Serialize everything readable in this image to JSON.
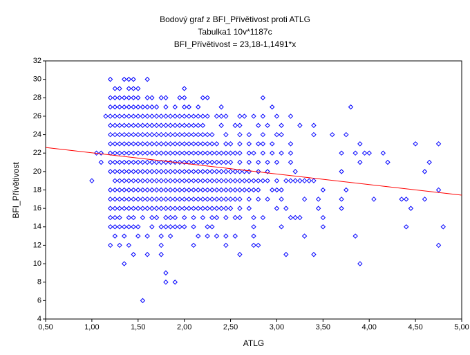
{
  "chart_data": {
    "type": "scatter",
    "title": "Bodový graf z BFI_Přívětivost proti ATLG",
    "subtitle": "Tabulka1 10v*1187c",
    "equation": "BFI_Přívětivost = 23,18-1,1491*x",
    "x_label": "ATLG",
    "y_label": "BFI_Přívětivost",
    "color": "#0000ff",
    "line_color": "#ff0000",
    "regression": {
      "intercept": 23.18,
      "slope": -1.1491
    },
    "xlim": [
      0.5,
      5.0
    ],
    "xticks": [
      {
        "value": 0.5,
        "label": "0,50"
      },
      {
        "value": 1.0,
        "label": "1,00"
      },
      {
        "value": 1.5,
        "label": "1,50"
      },
      {
        "value": 2.0,
        "label": "2,00"
      },
      {
        "value": 2.5,
        "label": "2,50"
      },
      {
        "value": 3.0,
        "label": "3,00"
      },
      {
        "value": 3.5,
        "label": "3,50"
      },
      {
        "value": 4.0,
        "label": "4,00"
      },
      {
        "value": 4.5,
        "label": "4,50"
      },
      {
        "value": 5.0,
        "label": "5,00"
      }
    ],
    "ylim": [
      4,
      32
    ],
    "yticks": [
      4,
      6,
      8,
      10,
      12,
      14,
      16,
      18,
      20,
      22,
      24,
      26,
      28,
      30,
      32
    ],
    "x": [
      1.2,
      1.35,
      1.4,
      1.45,
      1.6,
      1.25,
      1.3,
      1.4,
      1.45,
      1.5,
      2,
      1.2,
      1.25,
      1.3,
      1.35,
      1.4,
      1.45,
      1.5,
      1.6,
      1.65,
      1.75,
      1.8,
      1.95,
      2,
      2.2,
      2.25,
      2.85,
      1.2,
      1.25,
      1.3,
      1.35,
      1.4,
      1.45,
      1.5,
      1.55,
      1.6,
      1.65,
      1.7,
      1.8,
      1.9,
      2,
      2.05,
      2.15,
      2.4,
      2.95,
      3.8,
      1.15,
      1.2,
      1.25,
      1.3,
      1.35,
      1.4,
      1.45,
      1.5,
      1.55,
      1.6,
      1.65,
      1.7,
      1.75,
      1.8,
      1.85,
      1.9,
      1.95,
      2,
      2.05,
      2.1,
      2.15,
      2.2,
      2.25,
      2.35,
      2.4,
      2.45,
      2.6,
      2.65,
      2.75,
      2.85,
      3,
      3.15,
      1.2,
      1.25,
      1.3,
      1.35,
      1.4,
      1.45,
      1.5,
      1.55,
      1.6,
      1.65,
      1.7,
      1.75,
      1.8,
      1.85,
      1.9,
      1.95,
      2,
      2.05,
      2.1,
      2.15,
      2.2,
      2.4,
      2.55,
      2.6,
      2.8,
      2.9,
      3.05,
      3.25,
      3.4,
      1.2,
      1.25,
      1.3,
      1.35,
      1.4,
      1.45,
      1.5,
      1.55,
      1.6,
      1.65,
      1.7,
      1.75,
      1.8,
      1.85,
      1.9,
      1.95,
      2,
      2.05,
      2.1,
      2.15,
      2.2,
      2.25,
      2.3,
      2.45,
      2.6,
      2.7,
      2.85,
      3,
      3.05,
      3.4,
      3.6,
      3.75,
      1.2,
      1.25,
      1.3,
      1.35,
      1.4,
      1.45,
      1.5,
      1.55,
      1.6,
      1.65,
      1.7,
      1.75,
      1.8,
      1.85,
      1.9,
      1.95,
      2,
      2.05,
      2.1,
      2.15,
      2.2,
      2.25,
      2.3,
      2.35,
      2.45,
      2.5,
      2.6,
      2.7,
      2.8,
      2.85,
      2.95,
      3.15,
      3.9,
      4.5,
      4.75,
      1.05,
      1.1,
      1.2,
      1.25,
      1.3,
      1.35,
      1.4,
      1.45,
      1.5,
      1.55,
      1.6,
      1.65,
      1.7,
      1.75,
      1.8,
      1.85,
      1.9,
      1.95,
      2,
      2.05,
      2.1,
      2.15,
      2.2,
      2.25,
      2.3,
      2.35,
      2.4,
      2.45,
      2.5,
      2.55,
      2.6,
      2.7,
      2.75,
      2.85,
      2.95,
      3.05,
      3.15,
      3.7,
      3.85,
      3.95,
      4,
      4.15,
      1.1,
      1.2,
      1.25,
      1.3,
      1.35,
      1.4,
      1.45,
      1.5,
      1.55,
      1.6,
      1.65,
      1.7,
      1.75,
      1.8,
      1.85,
      1.9,
      1.95,
      2,
      2.05,
      2.1,
      2.15,
      2.2,
      2.25,
      2.3,
      2.35,
      2.4,
      2.45,
      2.5,
      2.6,
      2.7,
      2.8,
      2.9,
      3,
      3.15,
      3.9,
      4.2,
      4.65,
      1.2,
      1.25,
      1.3,
      1.35,
      1.4,
      1.45,
      1.5,
      1.55,
      1.6,
      1.65,
      1.7,
      1.75,
      1.8,
      1.85,
      1.9,
      1.95,
      2,
      2.05,
      2.1,
      2.15,
      2.2,
      2.25,
      2.3,
      2.35,
      2.4,
      2.45,
      2.5,
      2.55,
      2.6,
      2.65,
      2.7,
      2.8,
      2.9,
      3.2,
      3.7,
      4.6,
      1,
      1.25,
      1.3,
      1.35,
      1.4,
      1.45,
      1.5,
      1.55,
      1.6,
      1.65,
      1.7,
      1.75,
      1.8,
      1.85,
      1.9,
      1.95,
      2,
      2.05,
      2.1,
      2.15,
      2.2,
      2.25,
      2.3,
      2.35,
      2.4,
      2.45,
      2.5,
      2.55,
      2.6,
      2.65,
      2.7,
      2.75,
      2.8,
      2.85,
      2.9,
      3,
      3.1,
      3.15,
      3.2,
      3.25,
      3.3,
      3.35,
      3.4,
      1.2,
      1.25,
      1.3,
      1.35,
      1.4,
      1.45,
      1.5,
      1.55,
      1.6,
      1.65,
      1.7,
      1.75,
      1.8,
      1.85,
      1.9,
      1.95,
      2,
      2.05,
      2.1,
      2.15,
      2.2,
      2.25,
      2.3,
      2.35,
      2.4,
      2.45,
      2.5,
      2.55,
      2.6,
      2.65,
      2.7,
      2.75,
      2.8,
      2.95,
      3,
      3.05,
      3.5,
      3.75,
      4.75,
      1.2,
      1.25,
      1.3,
      1.35,
      1.4,
      1.45,
      1.5,
      1.55,
      1.6,
      1.65,
      1.7,
      1.75,
      1.8,
      1.85,
      1.9,
      1.95,
      2,
      2.05,
      2.1,
      2.15,
      2.2,
      2.25,
      2.3,
      2.35,
      2.4,
      2.45,
      2.5,
      2.55,
      2.6,
      2.7,
      2.8,
      2.9,
      3.05,
      3.3,
      3.45,
      3.7,
      4.05,
      4.35,
      4.4,
      4.6,
      1.2,
      1.25,
      1.3,
      1.35,
      1.4,
      1.45,
      1.5,
      1.55,
      1.6,
      1.65,
      1.7,
      1.75,
      1.8,
      1.85,
      1.9,
      1.95,
      2,
      2.05,
      2.1,
      2.15,
      2.2,
      2.25,
      2.3,
      2.35,
      2.4,
      2.45,
      2.5,
      2.6,
      2.7,
      3,
      3.1,
      3.45,
      3.7,
      4.45,
      1.2,
      1.25,
      1.3,
      1.4,
      1.45,
      1.55,
      1.65,
      1.7,
      1.8,
      1.85,
      1.9,
      2,
      2.1,
      2.2,
      2.3,
      2.35,
      2.45,
      2.55,
      2.6,
      2.75,
      2.85,
      3.15,
      3.2,
      3.25,
      3.5,
      1.2,
      1.25,
      1.3,
      1.35,
      1.4,
      1.45,
      1.5,
      1.65,
      1.75,
      1.8,
      1.85,
      1.9,
      1.95,
      2,
      2.1,
      2.25,
      2.3,
      2.75,
      3.05,
      3.5,
      4.4,
      4.8,
      1.25,
      1.35,
      1.5,
      1.6,
      1.75,
      1.85,
      2.15,
      2.25,
      2.35,
      2.45,
      2.55,
      2.75,
      3.3,
      3.85,
      1.2,
      1.3,
      1.4,
      1.75,
      2.1,
      2.45,
      2.75,
      2.8,
      4.75,
      1.45,
      1.6,
      1.75,
      2.6,
      3.1,
      3.4,
      1.35,
      3.9,
      1.8,
      1.8,
      1.9,
      1.55
    ],
    "y": [
      30,
      30,
      30,
      30,
      30,
      29,
      29,
      29,
      29,
      29,
      29,
      28,
      28,
      28,
      28,
      28,
      28,
      28,
      28,
      28,
      28,
      28,
      28,
      28,
      28,
      28,
      28,
      27,
      27,
      27,
      27,
      27,
      27,
      27,
      27,
      27,
      27,
      27,
      27,
      27,
      27,
      27,
      27,
      27,
      27,
      27,
      26,
      26,
      26,
      26,
      26,
      26,
      26,
      26,
      26,
      26,
      26,
      26,
      26,
      26,
      26,
      26,
      26,
      26,
      26,
      26,
      26,
      26,
      26,
      26,
      26,
      26,
      26,
      26,
      26,
      26,
      26,
      26,
      25,
      25,
      25,
      25,
      25,
      25,
      25,
      25,
      25,
      25,
      25,
      25,
      25,
      25,
      25,
      25,
      25,
      25,
      25,
      25,
      25,
      25,
      25,
      25,
      25,
      25,
      25,
      25,
      25,
      24,
      24,
      24,
      24,
      24,
      24,
      24,
      24,
      24,
      24,
      24,
      24,
      24,
      24,
      24,
      24,
      24,
      24,
      24,
      24,
      24,
      24,
      24,
      24,
      24,
      24,
      24,
      24,
      24,
      24,
      24,
      24,
      23,
      23,
      23,
      23,
      23,
      23,
      23,
      23,
      23,
      23,
      23,
      23,
      23,
      23,
      23,
      23,
      23,
      23,
      23,
      23,
      23,
      23,
      23,
      23,
      23,
      23,
      23,
      23,
      23,
      23,
      23,
      23,
      23,
      23,
      23,
      22,
      22,
      22,
      22,
      22,
      22,
      22,
      22,
      22,
      22,
      22,
      22,
      22,
      22,
      22,
      22,
      22,
      22,
      22,
      22,
      22,
      22,
      22,
      22,
      22,
      22,
      22,
      22,
      22,
      22,
      22,
      22,
      22,
      22,
      22,
      22,
      22,
      22,
      22,
      22,
      22,
      22,
      21,
      21,
      21,
      21,
      21,
      21,
      21,
      21,
      21,
      21,
      21,
      21,
      21,
      21,
      21,
      21,
      21,
      21,
      21,
      21,
      21,
      21,
      21,
      21,
      21,
      21,
      21,
      21,
      21,
      21,
      21,
      21,
      21,
      21,
      21,
      21,
      21,
      20,
      20,
      20,
      20,
      20,
      20,
      20,
      20,
      20,
      20,
      20,
      20,
      20,
      20,
      20,
      20,
      20,
      20,
      20,
      20,
      20,
      20,
      20,
      20,
      20,
      20,
      20,
      20,
      20,
      20,
      20,
      20,
      20,
      20,
      20,
      20,
      19,
      19,
      19,
      19,
      19,
      19,
      19,
      19,
      19,
      19,
      19,
      19,
      19,
      19,
      19,
      19,
      19,
      19,
      19,
      19,
      19,
      19,
      19,
      19,
      19,
      19,
      19,
      19,
      19,
      19,
      19,
      19,
      19,
      19,
      19,
      19,
      19,
      19,
      19,
      19,
      19,
      19,
      19,
      18,
      18,
      18,
      18,
      18,
      18,
      18,
      18,
      18,
      18,
      18,
      18,
      18,
      18,
      18,
      18,
      18,
      18,
      18,
      18,
      18,
      18,
      18,
      18,
      18,
      18,
      18,
      18,
      18,
      18,
      18,
      18,
      18,
      18,
      18,
      18,
      18,
      18,
      18,
      17,
      17,
      17,
      17,
      17,
      17,
      17,
      17,
      17,
      17,
      17,
      17,
      17,
      17,
      17,
      17,
      17,
      17,
      17,
      17,
      17,
      17,
      17,
      17,
      17,
      17,
      17,
      17,
      17,
      17,
      17,
      17,
      17,
      17,
      17,
      17,
      17,
      17,
      17,
      17,
      16,
      16,
      16,
      16,
      16,
      16,
      16,
      16,
      16,
      16,
      16,
      16,
      16,
      16,
      16,
      16,
      16,
      16,
      16,
      16,
      16,
      16,
      16,
      16,
      16,
      16,
      16,
      16,
      16,
      16,
      16,
      16,
      16,
      16,
      15,
      15,
      15,
      15,
      15,
      15,
      15,
      15,
      15,
      15,
      15,
      15,
      15,
      15,
      15,
      15,
      15,
      15,
      15,
      15,
      15,
      15,
      15,
      15,
      15,
      14,
      14,
      14,
      14,
      14,
      14,
      14,
      14,
      14,
      14,
      14,
      14,
      14,
      14,
      14,
      14,
      14,
      14,
      14,
      14,
      14,
      14,
      13,
      13,
      13,
      13,
      13,
      13,
      13,
      13,
      13,
      13,
      13,
      13,
      13,
      13,
      12,
      12,
      12,
      12,
      12,
      12,
      12,
      12,
      12,
      11,
      11,
      11,
      11,
      11,
      11,
      10,
      10,
      9,
      8,
      8,
      6
    ]
  }
}
